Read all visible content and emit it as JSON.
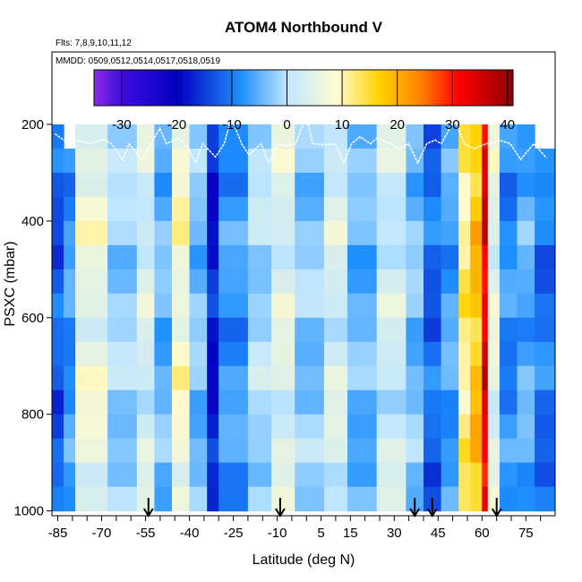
{
  "chart_data": {
    "type": "heatmap",
    "title": "ATOM4 Northbound V",
    "flights_note": "Flts: 7,8,9,10,11,12",
    "dates_note": "MMDD: 0509,0512,0514,0517,0518,0519",
    "xlabel": "Latitude (deg N)",
    "ylabel": "PSXC (mbar)",
    "xlim": [
      -87,
      85
    ],
    "ylim": [
      1010,
      50
    ],
    "x_ticks": [
      -85,
      -70,
      -55,
      -40,
      -25,
      -10,
      5,
      15,
      30,
      45,
      60,
      75
    ],
    "x_tick_labels": [
      "-85",
      "-70",
      "-55",
      "-40",
      "-25",
      "-10",
      "5",
      "15",
      "30",
      "45",
      "60",
      "75"
    ],
    "y_ticks": [
      200,
      400,
      600,
      800,
      1000
    ],
    "y_tick_labels": [
      "200",
      "400",
      "600",
      "800",
      "1000"
    ],
    "colorbar": {
      "min": -35,
      "max": 41,
      "ticks": [
        -30,
        -20,
        -10,
        0,
        10,
        20,
        30,
        40
      ],
      "tick_labels": [
        "-30",
        "-20",
        "-10",
        "0",
        "10",
        "20",
        "30",
        "40"
      ],
      "colors": [
        "#8a2be2",
        "#0000c0",
        "#1e8fff",
        "#bfe6ff",
        "#fffbd0",
        "#ffd400",
        "#ff8000",
        "#ff0000",
        "#8b0000"
      ]
    },
    "arrow_latitudes": [
      -54,
      -9,
      37,
      43,
      65
    ],
    "pressure_levels": [
      175,
      225,
      275,
      325,
      375,
      425,
      475,
      525,
      575,
      625,
      675,
      725,
      775,
      825,
      875,
      925,
      975
    ],
    "regions": [
      {
        "lat": [
          -87,
          -83
        ],
        "v": -13,
        "p_top": 200
      },
      {
        "lat": [
          -83,
          -79
        ],
        "v": -8,
        "p_top": 210
      },
      {
        "lat": [
          -79,
          -68
        ],
        "v": 6,
        "p_top": 180
      },
      {
        "lat": [
          -68,
          -58
        ],
        "v": -2,
        "p_top": 180
      },
      {
        "lat": [
          -58,
          -52
        ],
        "v": 3,
        "p_top": 180
      },
      {
        "lat": [
          -52,
          -46
        ],
        "v": -5,
        "p_top": 180
      },
      {
        "lat": [
          -46,
          -40
        ],
        "v": 8,
        "p_top": 180
      },
      {
        "lat": [
          -40,
          -34
        ],
        "v": -4,
        "p_top": 180
      },
      {
        "lat": [
          -34,
          -30
        ],
        "v": -18,
        "p_top": 180
      },
      {
        "lat": [
          -30,
          -20
        ],
        "v": -8,
        "p_top": 180
      },
      {
        "lat": [
          -20,
          -12
        ],
        "v": -1,
        "p_top": 180
      },
      {
        "lat": [
          -12,
          -4
        ],
        "v": 4,
        "p_top": 180
      },
      {
        "lat": [
          -4,
          6
        ],
        "v": -3,
        "p_top": 180
      },
      {
        "lat": [
          6,
          14
        ],
        "v": 3,
        "p_top": 180
      },
      {
        "lat": [
          14,
          24
        ],
        "v": -5,
        "p_top": 180
      },
      {
        "lat": [
          24,
          34
        ],
        "v": 2,
        "p_top": 180
      },
      {
        "lat": [
          34,
          40
        ],
        "v": -4,
        "p_top": 180
      },
      {
        "lat": [
          40,
          46
        ],
        "v": -12,
        "p_top": 180
      },
      {
        "lat": [
          46,
          52
        ],
        "v": -7,
        "p_top": 180
      },
      {
        "lat": [
          52,
          56
        ],
        "v": 12,
        "p_top": 180
      },
      {
        "lat": [
          56,
          60
        ],
        "v": 18,
        "p_top": 180
      },
      {
        "lat": [
          60,
          62
        ],
        "v": 33,
        "p_top": 180
      },
      {
        "lat": [
          62,
          66
        ],
        "v": 5,
        "p_top": 180
      },
      {
        "lat": [
          66,
          72
        ],
        "v": -9,
        "p_top": 180
      },
      {
        "lat": [
          72,
          78
        ],
        "v": -6,
        "p_top": 180
      },
      {
        "lat": [
          78,
          85
        ],
        "v": -11,
        "p_top": 250
      }
    ]
  }
}
